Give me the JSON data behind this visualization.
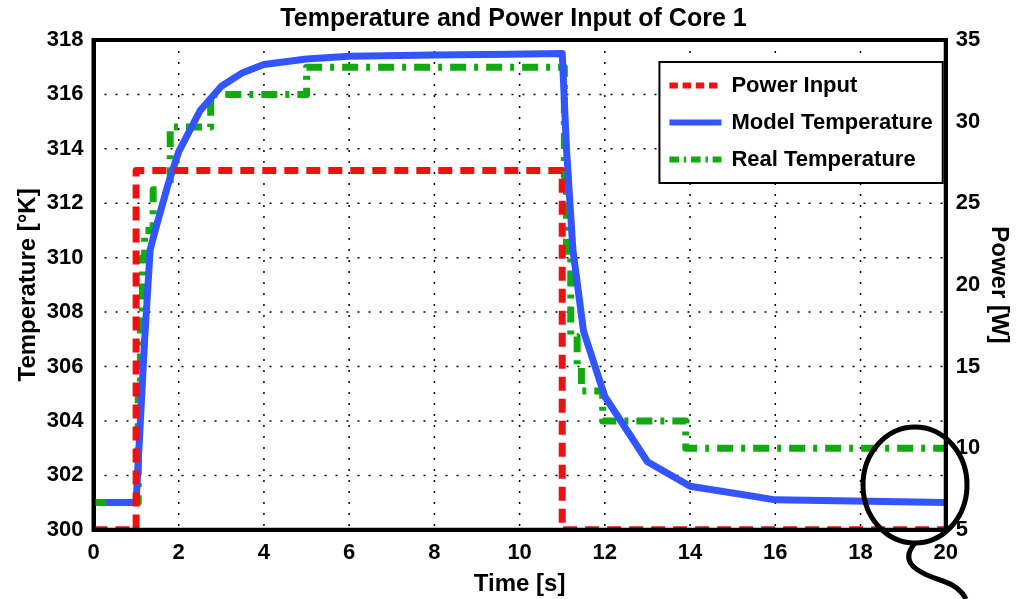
{
  "chart_data": {
    "type": "line",
    "title": "Temperature and Power Input of Core 1",
    "xlabel": "Time [s]",
    "ylabel": "Temperature [°K]",
    "y2label": "Power [W]",
    "xlim": [
      0,
      20
    ],
    "xticks": [
      0,
      2,
      4,
      6,
      8,
      10,
      12,
      14,
      16,
      18,
      20
    ],
    "ylim": [
      300,
      318
    ],
    "yticks": [
      300,
      302,
      304,
      306,
      308,
      310,
      312,
      314,
      316,
      318
    ],
    "y2lim": [
      5,
      35
    ],
    "y2ticks": [
      5,
      10,
      15,
      20,
      25,
      30,
      35
    ],
    "grid": true,
    "legend": "top right",
    "marker": "none",
    "series": [
      {
        "name": "Power Input",
        "type": "step",
        "axis": "y2",
        "color": "#ee1111",
        "line_style": "dashed",
        "x": [
          0,
          1,
          11,
          20
        ],
        "values": [
          5,
          27,
          5,
          5
        ]
      },
      {
        "name": "Model Temperature",
        "type": "line",
        "color": "#3355ff",
        "line_style": "solid",
        "x": [
          0.3,
          1.0,
          1.1,
          1.2,
          1.33,
          1.5,
          1.75,
          2,
          2.5,
          3,
          3.5,
          4,
          5,
          6,
          8,
          11,
          11.1,
          11.25,
          11.5,
          12,
          13,
          14,
          16,
          20
        ],
        "values": [
          301,
          301,
          304,
          307,
          310.3,
          311.3,
          312.7,
          313.9,
          315.4,
          316.3,
          316.8,
          317.1,
          317.3,
          317.4,
          317.45,
          317.5,
          314,
          310.3,
          307.3,
          304.9,
          302.5,
          301.6,
          301.1,
          301
        ]
      },
      {
        "name": "Real Temperature",
        "type": "step",
        "color": "#11aa11",
        "line_style": "dashdot",
        "x": [
          0,
          1.05,
          1.1,
          1.15,
          1.2,
          1.4,
          1.8,
          2.75,
          5.0,
          11.05,
          11.1,
          11.2,
          11.35,
          11.45,
          11.95,
          13.9,
          20
        ],
        "values": [
          301,
          305,
          308,
          310,
          311,
          312.5,
          314.8,
          316,
          317,
          313,
          310,
          307.1,
          306,
          305.1,
          304,
          303,
          303
        ]
      }
    ]
  }
}
